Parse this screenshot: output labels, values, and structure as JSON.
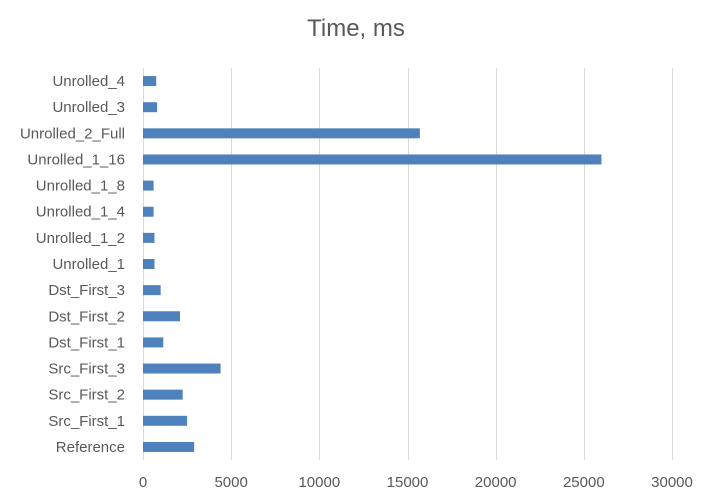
{
  "chart_data": {
    "type": "bar",
    "orientation": "horizontal",
    "title": "Time, ms",
    "xlabel": "",
    "ylabel": "",
    "categories": [
      "Reference",
      "Src_First_1",
      "Src_First_2",
      "Src_First_3",
      "Dst_First_1",
      "Dst_First_2",
      "Dst_First_3",
      "Unrolled_1",
      "Unrolled_1_2",
      "Unrolled_1_4",
      "Unrolled_1_8",
      "Unrolled_1_16",
      "Unrolled_2_Full",
      "Unrolled_3",
      "Unrolled_4"
    ],
    "values": [
      2900,
      2500,
      2250,
      4400,
      1150,
      2100,
      1000,
      650,
      650,
      600,
      600,
      26000,
      15700,
      800,
      750
    ],
    "xlim": [
      0,
      30000
    ],
    "xticks": [
      0,
      5000,
      10000,
      15000,
      20000,
      25000,
      30000
    ],
    "grid": "vertical",
    "legend": "none",
    "bar_color": "#4f81bd",
    "grid_color": "#d9d9d9",
    "text_color": "#595959"
  }
}
